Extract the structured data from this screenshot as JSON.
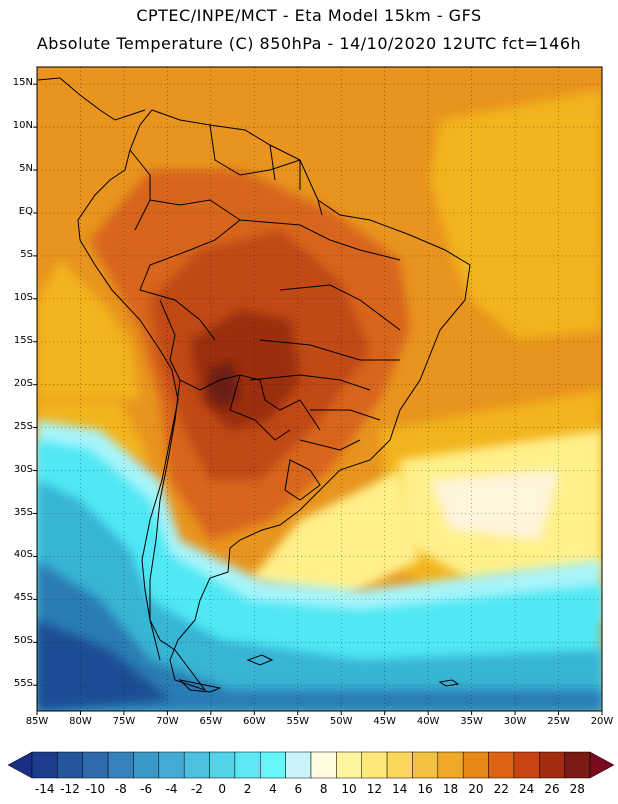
{
  "header": {
    "line1": "CPTEC/INPE/MCT -  Eta Model 15km - GFS",
    "line2": "Absolute Temperature (C) 850hPa - 14/10/2020 12UTC fct=146h"
  },
  "map": {
    "lon_range": [
      -85,
      -20
    ],
    "lat_range": [
      -58,
      17
    ],
    "lat_labels": [
      {
        "lat": 15,
        "label": "15N"
      },
      {
        "lat": 10,
        "label": "10N"
      },
      {
        "lat": 5,
        "label": "5N"
      },
      {
        "lat": 0,
        "label": "EQ"
      },
      {
        "lat": -5,
        "label": "5S"
      },
      {
        "lat": -10,
        "label": "10S"
      },
      {
        "lat": -15,
        "label": "15S"
      },
      {
        "lat": -20,
        "label": "20S"
      },
      {
        "lat": -25,
        "label": "25S"
      },
      {
        "lat": -30,
        "label": "30S"
      },
      {
        "lat": -35,
        "label": "35S"
      },
      {
        "lat": -40,
        "label": "40S"
      },
      {
        "lat": -45,
        "label": "45S"
      },
      {
        "lat": -50,
        "label": "50S"
      },
      {
        "lat": -55,
        "label": "55S"
      }
    ],
    "lon_labels": [
      {
        "lon": -85,
        "label": "85W"
      },
      {
        "lon": -80,
        "label": "80W"
      },
      {
        "lon": -75,
        "label": "75W"
      },
      {
        "lon": -70,
        "label": "70W"
      },
      {
        "lon": -65,
        "label": "65W"
      },
      {
        "lon": -60,
        "label": "60W"
      },
      {
        "lon": -55,
        "label": "55W"
      },
      {
        "lon": -50,
        "label": "50W"
      },
      {
        "lon": -45,
        "label": "45W"
      },
      {
        "lon": -40,
        "label": "40W"
      },
      {
        "lon": -35,
        "label": "35W"
      },
      {
        "lon": -30,
        "label": "30W"
      },
      {
        "lon": -25,
        "label": "25W"
      },
      {
        "lon": -20,
        "label": "20W"
      }
    ],
    "colors": {
      "t20": "#e8941e",
      "t18": "#f2b41a",
      "t22": "#d8651a",
      "t24": "#c04a12",
      "t26": "#9a2e10",
      "t28": "#6a1a14",
      "pale": "#fff4dc",
      "yellow": "#fff08a",
      "cyan": "#4fe8f4",
      "cyanLight": "#a8f4fa",
      "blueMid": "#38b4d4",
      "blueDark": "#2a7cb4",
      "navy": "#1e4e94",
      "coast": "#000000"
    }
  },
  "colorbar": {
    "labels": [
      "-14",
      "-12",
      "-10",
      "-8",
      "-6",
      "-4",
      "-2",
      "0",
      "2",
      "4",
      "6",
      "8",
      "10",
      "12",
      "14",
      "16",
      "18",
      "20",
      "22",
      "24",
      "26",
      "28"
    ],
    "colors": [
      "#1c3e8c",
      "#25569c",
      "#2e6aac",
      "#3682bc",
      "#3c98c8",
      "#44acd4",
      "#4cc0de",
      "#54d4e8",
      "#5ce8f2",
      "#66f6f8",
      "#c8f4fa",
      "#fffae0",
      "#fff4a0",
      "#ffe878",
      "#fad65c",
      "#f4c040",
      "#f0a828",
      "#e88818",
      "#dc6414",
      "#c84414",
      "#a42c10",
      "#7a1a14"
    ],
    "underflow": "#1a2e84",
    "overflow": "#7a0a20"
  }
}
